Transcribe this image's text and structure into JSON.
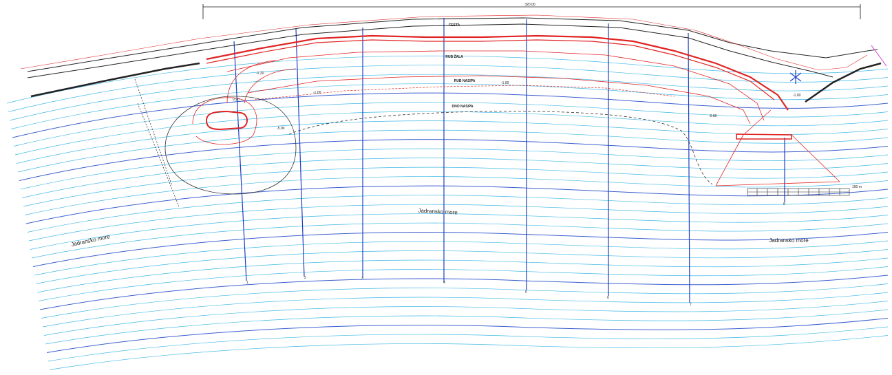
{
  "labels": {
    "road": "CESTA",
    "gravel_edge": "RUB ŽALA",
    "fill_edge": "RUB NASIPA",
    "fill_bottom": "DNO NASIPA",
    "sea_left": "Jadransko more",
    "sea_center": "Jadransko more",
    "sea_right": "Jadransko more"
  },
  "dimension": {
    "total_length": "320.00"
  },
  "depth_marks": [
    "-1.20",
    "0.90",
    "-1.00",
    "-1.00",
    "-5.00",
    "-0.60",
    "-1.00"
  ],
  "profiles": [
    "1",
    "2",
    "3",
    "4",
    "5",
    "6",
    "7",
    "8"
  ],
  "scale_bar": {
    "label": "100 m"
  },
  "colors": {
    "contour": "#3fb8e6",
    "contour_dark": "#3a5fcf",
    "profile_line": "#1f3fbf",
    "structure": "#e02424",
    "ink": "#222222"
  }
}
